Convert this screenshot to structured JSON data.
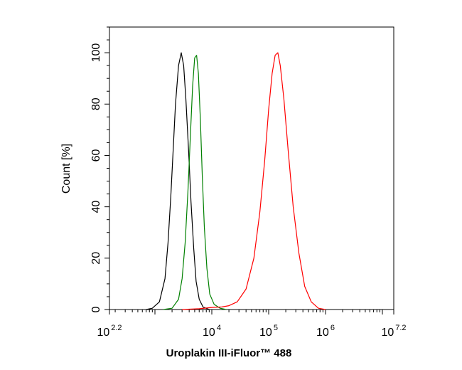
{
  "chart_data": {
    "type": "line",
    "xlabel": "Uroplakin III-iFluor™ 488",
    "ylabel": "Count [%]",
    "xscale": "log",
    "xlim": [
      158.5,
      15849000
    ],
    "ylim": [
      0,
      110
    ],
    "x_ticks": [
      {
        "base": "10",
        "exp": "2.2",
        "value": 158.5
      },
      {
        "base": "10",
        "exp": "4",
        "value": 10000
      },
      {
        "base": "10",
        "exp": "5",
        "value": 100000
      },
      {
        "base": "10",
        "exp": "6",
        "value": 1000000
      },
      {
        "base": "10",
        "exp": "7.2",
        "value": 15849000
      }
    ],
    "y_ticks": [
      "0",
      "20",
      "40",
      "60",
      "80",
      "100"
    ],
    "grid": false,
    "legend": "none",
    "series": [
      {
        "color": "#000000",
        "x": [
          700,
          900,
          1200,
          1500,
          1700,
          1900,
          2100,
          2300,
          2600,
          2900,
          3200,
          3500,
          3900,
          4300,
          4800,
          5300,
          6000,
          7000,
          9000
        ],
        "y": [
          0,
          0.5,
          3,
          12,
          26,
          44,
          63,
          80,
          95,
          100,
          95,
          82,
          62,
          42,
          24,
          11,
          4,
          1,
          0
        ]
      },
      {
        "color": "#008000",
        "x": [
          1400,
          2000,
          2600,
          3000,
          3400,
          3800,
          4200,
          4600,
          5000,
          5400,
          5800,
          6300,
          6800,
          7400,
          8200,
          9200,
          11000,
          14000,
          18000
        ],
        "y": [
          0,
          0.5,
          4,
          12,
          26,
          46,
          68,
          87,
          98,
          99,
          92,
          74,
          52,
          32,
          16,
          6,
          2,
          0.5,
          0
        ]
      },
      {
        "color": "#ff0000",
        "x": [
          3000,
          6000,
          10000,
          15000,
          20000,
          28000,
          40000,
          55000,
          70000,
          85000,
          100000,
          115000,
          130000,
          145000,
          160000,
          185000,
          220000,
          270000,
          340000,
          430000,
          560000,
          750000,
          1000000
        ],
        "y": [
          0,
          0.3,
          0.8,
          1,
          1.5,
          3,
          8,
          20,
          38,
          58,
          78,
          92,
          99,
          100,
          95,
          82,
          62,
          40,
          22,
          9,
          3,
          0.5,
          0
        ]
      }
    ]
  }
}
